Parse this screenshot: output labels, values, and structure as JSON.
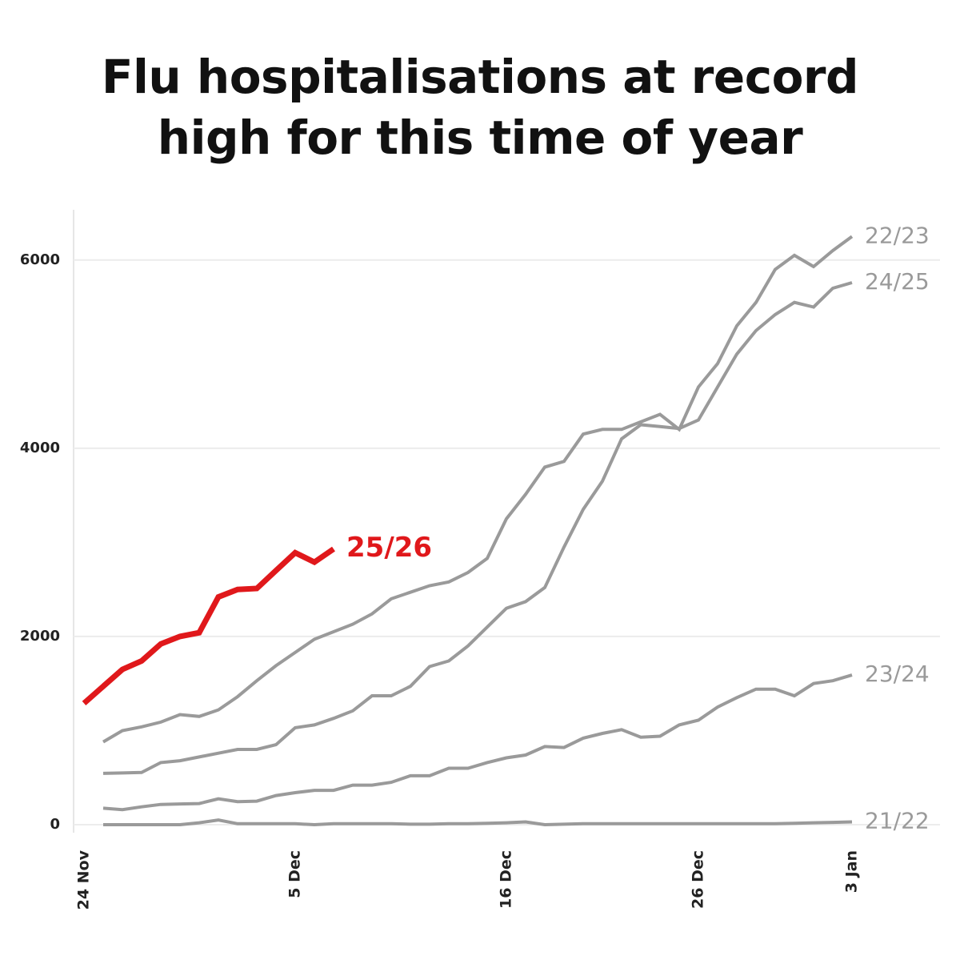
{
  "chart_data": {
    "type": "line",
    "title": "Flu hospitalisations at record high for this time of year",
    "categories": [
      "24 Nov",
      null,
      null,
      null,
      null,
      null,
      null,
      null,
      null,
      null,
      null,
      "5 Dec",
      null,
      null,
      null,
      null,
      null,
      null,
      null,
      null,
      null,
      null,
      "16 Dec",
      null,
      null,
      null,
      null,
      null,
      null,
      null,
      null,
      null,
      "26 Dec",
      null,
      null,
      null,
      null,
      null,
      null,
      null,
      "3 Jan"
    ],
    "series": [
      {
        "name": "22/23",
        "color": "#9a9a9a",
        "values": [
          null,
          880,
          1000,
          1040,
          1090,
          1170,
          1150,
          1220,
          1360,
          1530,
          1690,
          1830,
          1970,
          2050,
          2130,
          2240,
          2400,
          2470,
          2540,
          2580,
          2680,
          2830,
          3250,
          3510,
          3800,
          3860,
          4150,
          4200,
          4200,
          4280,
          4360,
          4200,
          4650,
          4900,
          5300,
          5550,
          5900,
          6050,
          5930,
          6100,
          6250
        ]
      },
      {
        "name": "24/25",
        "color": "#9a9a9a",
        "values": [
          null,
          545,
          550,
          555,
          660,
          680,
          720,
          760,
          800,
          800,
          850,
          1030,
          1060,
          1130,
          1210,
          1370,
          1370,
          1470,
          1680,
          1740,
          1900,
          2100,
          2300,
          2370,
          2520,
          2950,
          3350,
          3650,
          4100,
          4250,
          4230,
          4210,
          4300,
          4650,
          5000,
          5250,
          5420,
          5550,
          5500,
          5700,
          5760
        ]
      },
      {
        "name": "23/24",
        "color": "#9a9a9a",
        "values": [
          null,
          175,
          160,
          190,
          215,
          220,
          225,
          275,
          245,
          250,
          310,
          340,
          365,
          365,
          420,
          420,
          450,
          520,
          520,
          600,
          600,
          660,
          710,
          740,
          830,
          820,
          920,
          970,
          1010,
          930,
          940,
          1060,
          1110,
          1250,
          1350,
          1440,
          1440,
          1370,
          1500,
          1530,
          1590
        ]
      },
      {
        "name": "21/22",
        "color": "#9a9a9a",
        "values": [
          null,
          0,
          0,
          0,
          0,
          0,
          20,
          50,
          10,
          10,
          10,
          10,
          0,
          10,
          10,
          10,
          10,
          5,
          5,
          10,
          10,
          15,
          20,
          30,
          0,
          5,
          10,
          10,
          10,
          10,
          10,
          10,
          10,
          10,
          10,
          10,
          10,
          15,
          20,
          25,
          30
        ]
      },
      {
        "name": "25/26",
        "color": "#e0181b",
        "values": [
          1290,
          1470,
          1650,
          1740,
          1920,
          2000,
          2040,
          2420,
          2500,
          2510,
          2700,
          2890,
          2790,
          2930,
          null,
          null,
          null,
          null,
          null,
          null,
          null,
          null,
          null,
          null,
          null,
          null,
          null,
          null,
          null,
          null,
          null,
          null,
          null,
          null,
          null,
          null,
          null,
          null,
          null,
          null,
          null
        ]
      }
    ],
    "ylim": [
      0,
      6500
    ],
    "yticks": [
      0,
      2000,
      4000,
      6000
    ],
    "grid": true
  }
}
